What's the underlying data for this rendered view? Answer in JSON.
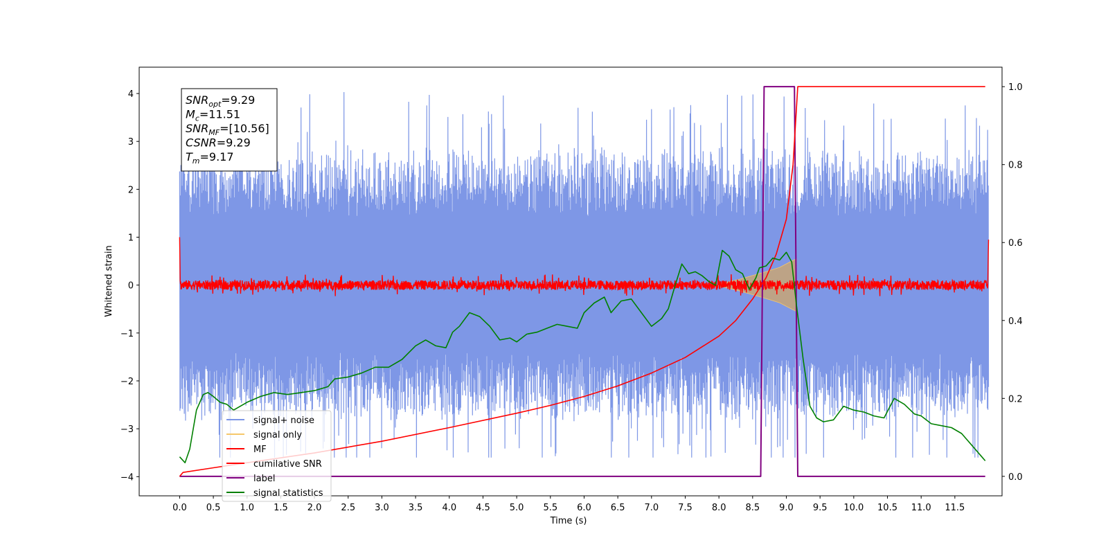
{
  "chart_data": {
    "type": "line",
    "xlabel": "Time (s)",
    "ylabel": "Whitened strain",
    "xlim": [
      -0.6,
      12.2
    ],
    "ylim_left": [
      -4.4,
      4.55
    ],
    "ylim_right": [
      -0.05,
      1.05
    ],
    "x_ticks": [
      "0.0",
      "0.5",
      "1.0",
      "1.5",
      "2.0",
      "2.5",
      "3.0",
      "3.5",
      "4.0",
      "4.5",
      "5.0",
      "5.5",
      "6.0",
      "6.5",
      "7.0",
      "7.5",
      "8.0",
      "8.5",
      "9.0",
      "9.5",
      "10.0",
      "10.5",
      "11.0",
      "11.5"
    ],
    "y_ticks_left": [
      "-4",
      "-3",
      "-2",
      "-1",
      "0",
      "1",
      "2",
      "3",
      "4"
    ],
    "y_ticks_right": [
      "0.0",
      "0.2",
      "0.4",
      "0.6",
      "0.8",
      "1.0"
    ],
    "legend": {
      "placement": "lower-left",
      "entries": [
        {
          "label": "signal+ noise",
          "color": "#7b95e6"
        },
        {
          "label": "signal only",
          "color": "#f5c76a"
        },
        {
          "label": "MF",
          "color": "#ff0000"
        },
        {
          "label": "cumilative SNR",
          "color": "#ff0000"
        },
        {
          "label": "label",
          "color": "#800080"
        },
        {
          "label": "signal statistics",
          "color": "#008000"
        }
      ]
    },
    "annotation": {
      "lines": [
        {
          "base": "SNR",
          "sub": "opt",
          "rest": "=9.29"
        },
        {
          "base": "M",
          "sub": "c",
          "rest": "=11.51"
        },
        {
          "base": "SNR",
          "sub": "MF",
          "rest": "=[10.56]"
        },
        {
          "base": "CSNR",
          "sub": "",
          "rest": "=9.29"
        },
        {
          "base": "T",
          "sub": "m",
          "rest": "=9.17"
        }
      ]
    },
    "series": [
      {
        "name": "signal+ noise",
        "axis": "left",
        "color": "#7b95e6",
        "kind": "noise",
        "x_range": [
          0,
          12
        ],
        "y_range": [
          -3.6,
          4.1
        ]
      },
      {
        "name": "signal only",
        "axis": "left",
        "color": "#f5c76a",
        "kind": "chirp_envelope",
        "x": [
          8.0,
          8.3,
          8.5,
          8.7,
          8.9,
          9.05,
          9.15
        ],
        "envelope": [
          0.02,
          0.12,
          0.2,
          0.28,
          0.37,
          0.48,
          0.55
        ]
      },
      {
        "name": "MF",
        "axis": "left",
        "color": "#ff0000",
        "kind": "band",
        "x_range": [
          0,
          12
        ],
        "amplitude": 0.1,
        "edges": {
          "start": [
            1.0,
            0.1
          ],
          "end": [
            0.1,
            0.95
          ]
        }
      },
      {
        "name": "cumilative SNR",
        "axis": "right",
        "color": "#ff0000",
        "x": [
          0,
          0.05,
          0.5,
          1,
          2,
          3,
          4,
          5,
          5.5,
          6,
          6.5,
          7,
          7.5,
          8,
          8.25,
          8.5,
          8.7,
          8.85,
          9.0,
          9.1,
          9.17,
          9.2,
          9.5,
          10,
          11,
          11.5,
          11.95
        ],
        "y": [
          0.0,
          0.01,
          0.022,
          0.035,
          0.06,
          0.09,
          0.125,
          0.162,
          0.182,
          0.205,
          0.232,
          0.265,
          0.305,
          0.36,
          0.4,
          0.455,
          0.51,
          0.57,
          0.66,
          0.8,
          1.0,
          1.0,
          1.0,
          1.0,
          1.0,
          1.0,
          1.0
        ]
      },
      {
        "name": "label",
        "axis": "right",
        "color": "#800080",
        "x": [
          0,
          8.62,
          8.67,
          9.12,
          9.17,
          11.95
        ],
        "y": [
          0,
          0,
          1,
          1,
          0,
          0
        ]
      },
      {
        "name": "signal statistics",
        "axis": "right",
        "color": "#008000",
        "x": [
          0,
          0.08,
          0.15,
          0.25,
          0.35,
          0.42,
          0.5,
          0.6,
          0.7,
          0.8,
          1.0,
          1.2,
          1.4,
          1.6,
          1.8,
          2.0,
          2.2,
          2.3,
          2.5,
          2.7,
          2.9,
          3.1,
          3.3,
          3.5,
          3.65,
          3.8,
          3.95,
          4.05,
          4.15,
          4.3,
          4.45,
          4.6,
          4.75,
          4.9,
          5.0,
          5.15,
          5.3,
          5.45,
          5.6,
          5.75,
          5.9,
          6.0,
          6.15,
          6.3,
          6.4,
          6.55,
          6.7,
          6.85,
          7.0,
          7.15,
          7.25,
          7.35,
          7.45,
          7.55,
          7.65,
          7.75,
          7.85,
          7.95,
          8.05,
          8.15,
          8.25,
          8.35,
          8.45,
          8.55,
          8.6,
          8.7,
          8.8,
          8.9,
          9.0,
          9.08,
          9.15,
          9.25,
          9.35,
          9.45,
          9.55,
          9.7,
          9.85,
          10.0,
          10.15,
          10.3,
          10.45,
          10.6,
          10.75,
          10.9,
          11.0,
          11.15,
          11.3,
          11.45,
          11.6,
          11.75,
          11.9,
          11.95
        ],
        "y": [
          0.05,
          0.035,
          0.07,
          0.17,
          0.21,
          0.215,
          0.205,
          0.19,
          0.185,
          0.17,
          0.19,
          0.205,
          0.215,
          0.21,
          0.215,
          0.22,
          0.23,
          0.25,
          0.255,
          0.265,
          0.28,
          0.28,
          0.3,
          0.335,
          0.35,
          0.335,
          0.33,
          0.37,
          0.385,
          0.42,
          0.41,
          0.385,
          0.35,
          0.355,
          0.345,
          0.365,
          0.37,
          0.38,
          0.39,
          0.385,
          0.38,
          0.42,
          0.445,
          0.46,
          0.42,
          0.45,
          0.455,
          0.42,
          0.385,
          0.405,
          0.43,
          0.49,
          0.545,
          0.52,
          0.525,
          0.515,
          0.5,
          0.49,
          0.58,
          0.565,
          0.53,
          0.52,
          0.48,
          0.51,
          0.535,
          0.54,
          0.56,
          0.555,
          0.575,
          0.55,
          0.44,
          0.3,
          0.18,
          0.15,
          0.14,
          0.145,
          0.18,
          0.17,
          0.165,
          0.155,
          0.15,
          0.2,
          0.185,
          0.16,
          0.155,
          0.135,
          0.13,
          0.125,
          0.11,
          0.08,
          0.05,
          0.04
        ]
      }
    ]
  }
}
